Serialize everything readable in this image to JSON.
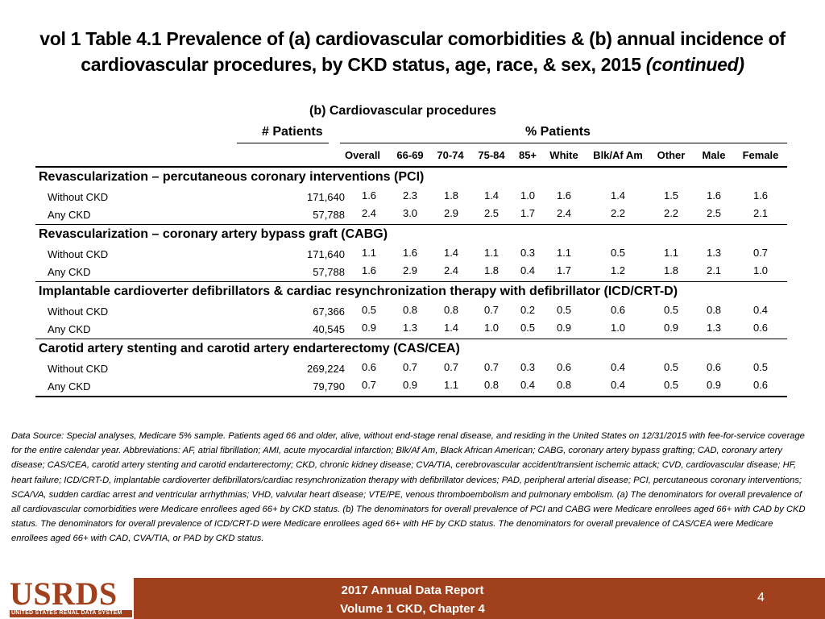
{
  "title": {
    "main": "vol 1 Table 4.1 Prevalence of (a) cardiovascular comorbidities & (b) annual incidence of cardiovascular procedures, by CKD status, age, race, & sex, 2015",
    "continued": "(continued)"
  },
  "table": {
    "subtitle": "(b)  Cardiovascular procedures",
    "patients_header": "# Patients",
    "percent_header": "% Patients",
    "columns": [
      "Overall",
      "66-69",
      "70-74",
      "75-84",
      "85+",
      "White",
      "Blk/Af Am",
      "Other",
      "Male",
      "Female"
    ],
    "sections": [
      {
        "title": "Revascularization – percutaneous coronary interventions (PCI)",
        "rows": [
          {
            "label": "Without CKD",
            "patients": "171,640",
            "values": [
              "1.6",
              "2.3",
              "1.8",
              "1.4",
              "1.0",
              "1.6",
              "1.4",
              "1.5",
              "1.6",
              "1.6"
            ]
          },
          {
            "label": "Any CKD",
            "patients": "57,788",
            "values": [
              "2.4",
              "3.0",
              "2.9",
              "2.5",
              "1.7",
              "2.4",
              "2.2",
              "2.2",
              "2.5",
              "2.1"
            ]
          }
        ]
      },
      {
        "title": "Revascularization – coronary artery bypass graft (CABG)",
        "rows": [
          {
            "label": "Without CKD",
            "patients": "171,640",
            "values": [
              "1.1",
              "1.6",
              "1.4",
              "1.1",
              "0.3",
              "1.1",
              "0.5",
              "1.1",
              "1.3",
              "0.7"
            ]
          },
          {
            "label": "Any CKD",
            "patients": "57,788",
            "values": [
              "1.6",
              "2.9",
              "2.4",
              "1.8",
              "0.4",
              "1.7",
              "1.2",
              "1.8",
              "2.1",
              "1.0"
            ]
          }
        ]
      },
      {
        "title": "Implantable cardioverter defibrillators & cardiac resynchronization therapy with defibrillator (ICD/CRT-D)",
        "rows": [
          {
            "label": "Without CKD",
            "patients": "67,366",
            "values": [
              "0.5",
              "0.8",
              "0.8",
              "0.7",
              "0.2",
              "0.5",
              "0.6",
              "0.5",
              "0.8",
              "0.4"
            ]
          },
          {
            "label": "Any CKD",
            "patients": "40,545",
            "values": [
              "0.9",
              "1.3",
              "1.4",
              "1.0",
              "0.5",
              "0.9",
              "1.0",
              "0.9",
              "1.3",
              "0.6"
            ]
          }
        ]
      },
      {
        "title": "Carotid artery stenting and carotid artery endarterectomy (CAS/CEA)",
        "rows": [
          {
            "label": "Without CKD",
            "patients": "269,224",
            "values": [
              "0.6",
              "0.7",
              "0.7",
              "0.7",
              "0.3",
              "0.6",
              "0.4",
              "0.5",
              "0.6",
              "0.5"
            ]
          },
          {
            "label": "Any CKD",
            "patients": "79,790",
            "values": [
              "0.7",
              "0.9",
              "1.1",
              "0.8",
              "0.4",
              "0.8",
              "0.4",
              "0.5",
              "0.9",
              "0.6"
            ]
          }
        ]
      }
    ]
  },
  "note": "Data Source: Special analyses, Medicare 5% sample. Patients aged 66 and older, alive, without end-stage renal disease, and residing in the United States on 12/31/2015 with fee-for-service coverage for the entire calendar year. Abbreviations: AF, atrial fibrillation; AMI, acute myocardial infarction; Blk/Af Am, Black African American; CABG, coronary artery bypass grafting; CAD, coronary artery disease; CAS/CEA, carotid artery stenting and carotid endarterectomy; CKD, chronic kidney disease; CVA/TIA, cerebrovascular accident/transient ischemic attack; CVD, cardiovascular disease; HF, heart failure; ICD/CRT-D, implantable cardioverter defibrillators/cardiac resynchronization therapy with defibrillator devices; PAD, peripheral arterial disease; PCI, percutaneous coronary interventions; SCA/VA, sudden cardiac arrest and ventricular arrhythmias; VHD, valvular heart disease; VTE/PE, venous thromboembolism and pulmonary embolism. (a) The denominators for overall prevalence of all cardiovascular comorbidities were Medicare enrollees aged 66+ by CKD status. (b) The denominators for overall prevalence of PCI and CABG were Medicare enrollees aged 66+ with CAD by CKD status. The denominators for overall prevalence of ICD/CRT-D were Medicare enrollees aged 66+ with HF by CKD status. The denominators for overall prevalence of CAS/CEA were Medicare enrollees aged 66+ with CAD, CVA/TIA, or PAD by CKD status.",
  "footer": {
    "logo_text": "USRDS",
    "logo_subtext": "UNITED STATES RENAL DATA SYSTEM",
    "report_line1": "2017 Annual Data Report",
    "report_line2": "Volume 1 CKD, Chapter 4",
    "page_number": "4"
  },
  "colors": {
    "footer_bar": "#a0401c",
    "text": "#000000"
  }
}
